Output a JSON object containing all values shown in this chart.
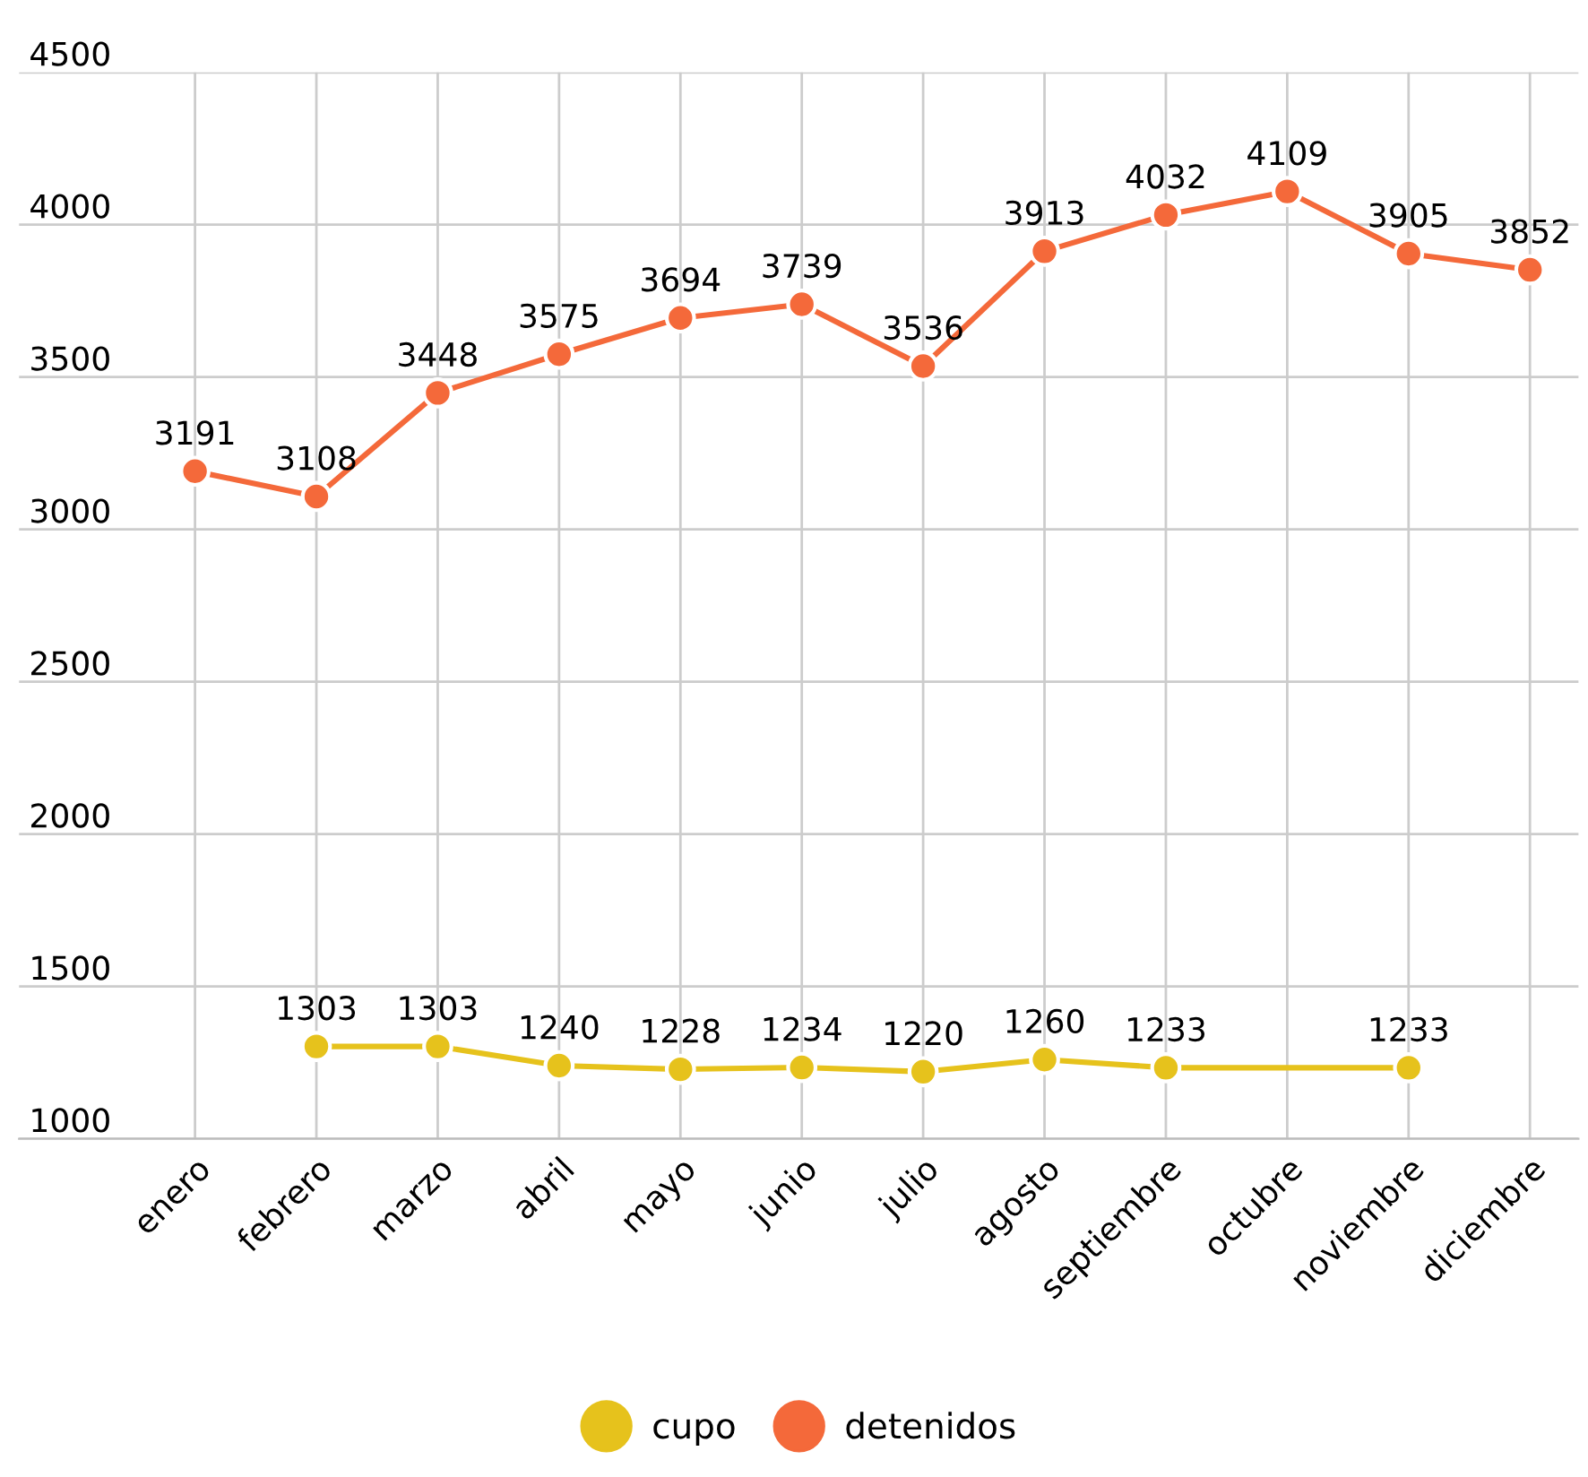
{
  "chart_data": {
    "type": "line",
    "categories": [
      "enero",
      "febrero",
      "marzo",
      "abril",
      "mayo",
      "junio",
      "julio",
      "agosto",
      "septiembre",
      "octubre",
      "noviembre",
      "diciembre"
    ],
    "series": [
      {
        "name": "cupo",
        "color": "#e6c21c",
        "values": [
          null,
          1303,
          1303,
          1240,
          1228,
          1234,
          1220,
          1260,
          1233,
          null,
          1233,
          null
        ]
      },
      {
        "name": "detenidos",
        "color": "#f4693a",
        "values": [
          3191,
          3108,
          3448,
          3575,
          3694,
          3739,
          3536,
          3913,
          4032,
          4109,
          3905,
          3852
        ]
      }
    ],
    "ylim": [
      1000,
      4500
    ],
    "yticks": [
      1000,
      1500,
      2000,
      2500,
      3000,
      3500,
      4000,
      4500
    ],
    "grid": true,
    "legend": "bottom",
    "marker": "circle",
    "line_style": "solid",
    "data_labels": true
  }
}
